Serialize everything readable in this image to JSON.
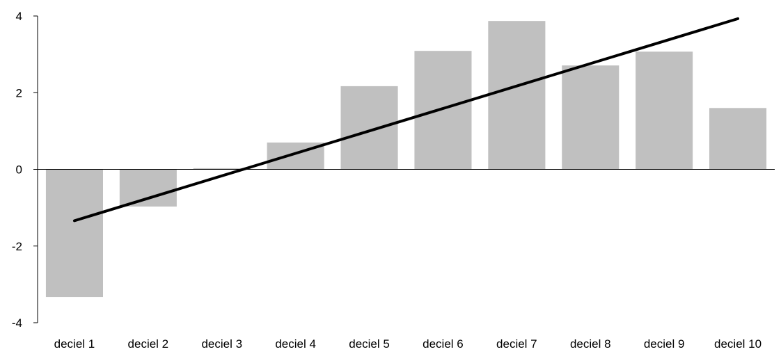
{
  "chart_data": {
    "type": "bar",
    "title": "",
    "xlabel": "",
    "ylabel": "",
    "ylim": [
      -4,
      4
    ],
    "yticks": [
      4,
      2,
      0,
      -2,
      -4
    ],
    "categories": [
      "deciel 1",
      "deciel 2",
      "deciel 3",
      "deciel 4",
      "deciel 5",
      "deciel 6",
      "deciel 7",
      "deciel 8",
      "deciel 9",
      "deciel 10"
    ],
    "values": [
      -3.33,
      -0.97,
      0.03,
      0.7,
      2.17,
      3.09,
      3.87,
      2.71,
      3.07,
      1.6
    ],
    "trendline": {
      "start": -1.34,
      "end": 3.93
    },
    "grid": false,
    "legend": "none",
    "colors": {
      "bar": "#c0c0c0",
      "line": "#000000",
      "axis": "#000000"
    }
  }
}
